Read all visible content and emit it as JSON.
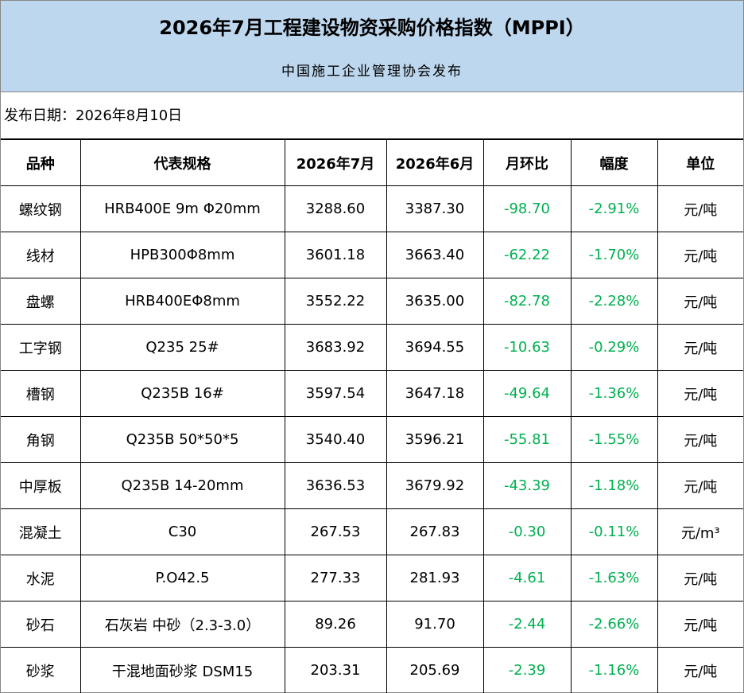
{
  "header": {
    "title": "2026年7月工程建设物资采购价格指数（MPPI）",
    "subtitle": "中国施工企业管理协会发布"
  },
  "date": "发布日期：2026年8月10日",
  "table": {
    "columns": [
      "品种",
      "代表规格",
      "2026年7月",
      "2026年6月",
      "月环比",
      "幅度",
      "单位"
    ],
    "rows": [
      [
        "螺纹钢",
        "HRB400E 9m Φ20mm",
        "3288.60",
        "3387.30",
        "-98.70",
        "-2.91%",
        "元/吨"
      ],
      [
        "线材",
        "HPB300Φ8mm",
        "3601.18",
        "3663.40",
        "-62.22",
        "-1.70%",
        "元/吨"
      ],
      [
        "盘螺",
        "HRB400EΦ8mm",
        "3552.22",
        "3635.00",
        "-82.78",
        "-2.28%",
        "元/吨"
      ],
      [
        "工字钢",
        "Q235 25#",
        "3683.92",
        "3694.55",
        "-10.63",
        "-0.29%",
        "元/吨"
      ],
      [
        "槽钢",
        "Q235B 16#",
        "3597.54",
        "3647.18",
        "-49.64",
        "-1.36%",
        "元/吨"
      ],
      [
        "角钢",
        "Q235B 50*50*5",
        "3540.40",
        "3596.21",
        "-55.81",
        "-1.55%",
        "元/吨"
      ],
      [
        "中厚板",
        "Q235B 14-20mm",
        "3636.53",
        "3679.92",
        "-43.39",
        "-1.18%",
        "元/吨"
      ],
      [
        "混凝土",
        "C30",
        "267.53",
        "267.83",
        "-0.30",
        "-0.11%",
        "元/m³"
      ],
      [
        "水泥",
        "P.O42.5",
        "277.33",
        "281.93",
        "-4.61",
        "-1.63%",
        "元/吨"
      ],
      [
        "砂石",
        "石灰岩 中砂（2.3-3.0）",
        "89.26",
        "91.70",
        "-2.44",
        "-2.66%",
        "元/吨"
      ],
      [
        "砂浆",
        "干混地面砂浆 DSM15",
        "203.31",
        "205.69",
        "-2.39",
        "-1.16%",
        "元/吨"
      ]
    ]
  }
}
